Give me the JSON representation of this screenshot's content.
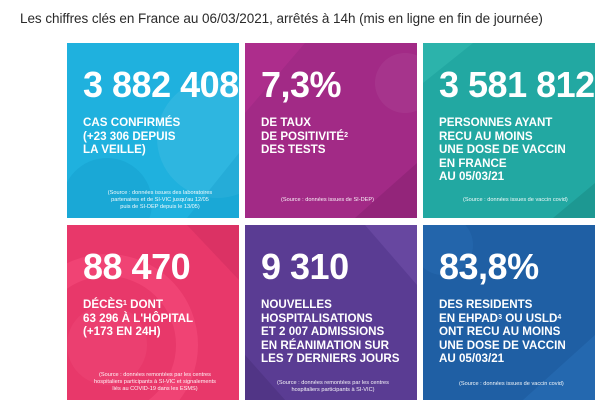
{
  "header": {
    "title": "Les chiffres clés en France au 06/03/2021, arrêtés à 14h (mis en ligne en fin de journée)"
  },
  "colors": {
    "cases": "#1fb1de",
    "positivity": "#a22a86",
    "vaccinated": "#22a8a2",
    "deaths": "#e8386a",
    "hospital": "#5a3c93",
    "ehpad": "#1f5fa4"
  },
  "cards": {
    "cases": {
      "value": "3 882 408",
      "lines": [
        "CAS CONFIRMÉS",
        "(+23 306 DEPUIS",
        "LA VEILLE)"
      ],
      "source": [
        "(Source : données issues des laboratoires",
        "partenaires et de SI-VIC jusqu'au 12/05",
        "puis de SI-DEP depuis le 13/05)"
      ]
    },
    "positivity": {
      "value": "7,3%",
      "lines": [
        "DE TAUX",
        "DE POSITIVITÉ",
        "DES TESTS"
      ],
      "footnote": "2",
      "source": [
        "(Source : données issues de SI-DEP)"
      ]
    },
    "vaccinated": {
      "value": "3 581 812",
      "lines": [
        "PERSONNES AYANT",
        "RECU AU MOINS",
        "UNE DOSE DE VACCIN",
        "EN FRANCE",
        "AU 05/03/21"
      ],
      "source": [
        "(Source : données issues de vaccin covid)"
      ]
    },
    "deaths": {
      "value": "88 470",
      "line1": "DÉCÈS",
      "footnote": "1",
      "line1_rest": " DONT",
      "lines": [
        "63 296 À L'HÔPITAL",
        "(+173 EN 24H)"
      ],
      "source": [
        "(Source : données remontées par les centres",
        "hospitaliers participants à SI-VIC et signalements",
        "liés au COVID-19 dans les ESMS)"
      ]
    },
    "hospital": {
      "value": "9 310",
      "lines": [
        "NOUVELLES",
        "HOSPITALISATIONS",
        "ET 2 007 ADMISSIONS",
        "EN RÉANIMATION SUR",
        "LES 7 DERNIERS JOURS"
      ],
      "source": [
        "(Source : données remontées par les centres",
        "hospitaliers participants à SI-VIC)"
      ]
    },
    "ehpad": {
      "value": "83,8%",
      "line1": "DES RESIDENTS",
      "line2_a": "EN EHPAD",
      "footnote_a": "3",
      "line2_b": " OU USLD",
      "footnote_b": "4",
      "lines": [
        "ONT RECU AU MOINS",
        "UNE DOSE DE VACCIN",
        "AU 05/03/21"
      ],
      "source": [
        "(Source : données issues de vaccin covid)"
      ]
    }
  }
}
